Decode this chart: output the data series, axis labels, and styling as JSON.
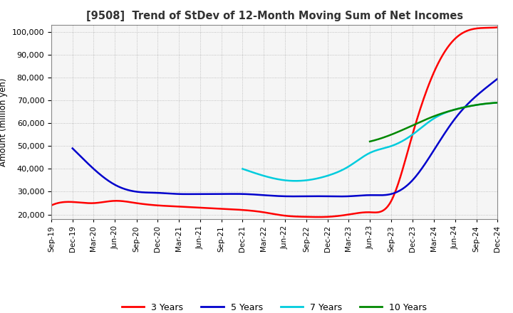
{
  "title": "[9508]  Trend of StDev of 12-Month Moving Sum of Net Incomes",
  "ylabel": "Amount (million yen)",
  "ylim": [
    18000,
    103000
  ],
  "yticks": [
    20000,
    30000,
    40000,
    50000,
    60000,
    70000,
    80000,
    90000,
    100000
  ],
  "line_colors": {
    "3Y": "#ff0000",
    "5Y": "#0000cc",
    "7Y": "#00ccdd",
    "10Y": "#008800"
  },
  "legend_labels": [
    "3 Years",
    "5 Years",
    "7 Years",
    "10 Years"
  ],
  "background_color": "#ffffff",
  "grid_color": "#aaaaaa",
  "series_3Y": {
    "offsets": [
      0,
      3,
      6,
      9,
      12,
      15,
      18,
      21,
      24,
      27,
      30,
      33,
      36,
      39,
      42,
      45,
      48,
      51,
      54,
      57,
      60,
      63
    ],
    "values": [
      24000,
      25500,
      25000,
      26000,
      25000,
      24000,
      23500,
      23000,
      22500,
      22000,
      21000,
      19500,
      19000,
      19000,
      20000,
      21000,
      26000,
      55000,
      82000,
      97000,
      101500,
      102000
    ]
  },
  "series_5Y": {
    "offsets": [
      3,
      6,
      9,
      12,
      15,
      18,
      21,
      24,
      27,
      30,
      33,
      36,
      39,
      42,
      45,
      48,
      51,
      54,
      57,
      60,
      63
    ],
    "values": [
      49000,
      40000,
      33000,
      30000,
      29500,
      29000,
      29000,
      29000,
      29000,
      28500,
      28000,
      28000,
      28000,
      28000,
      28500,
      29000,
      35000,
      48000,
      62000,
      72000,
      79500
    ]
  },
  "series_7Y": {
    "offsets": [
      27,
      30,
      33,
      36,
      39,
      42,
      45,
      48,
      51,
      54,
      57,
      60,
      63
    ],
    "values": [
      40000,
      37000,
      35000,
      35000,
      37000,
      41000,
      47000,
      50000,
      55000,
      62000,
      66000,
      68000,
      69000
    ]
  },
  "series_10Y": {
    "offsets": [
      45,
      48,
      51,
      54,
      57,
      60,
      63
    ],
    "values": [
      52000,
      55000,
      59000,
      63000,
      66000,
      68000,
      69000
    ]
  },
  "tick_dates": [
    "Sep-19",
    "Dec-19",
    "Mar-20",
    "Jun-20",
    "Sep-20",
    "Dec-20",
    "Mar-21",
    "Jun-21",
    "Sep-21",
    "Dec-21",
    "Mar-22",
    "Jun-22",
    "Sep-22",
    "Dec-22",
    "Mar-23",
    "Jun-23",
    "Sep-23",
    "Dec-23",
    "Mar-24",
    "Jun-24",
    "Sep-24",
    "Dec-24"
  ]
}
